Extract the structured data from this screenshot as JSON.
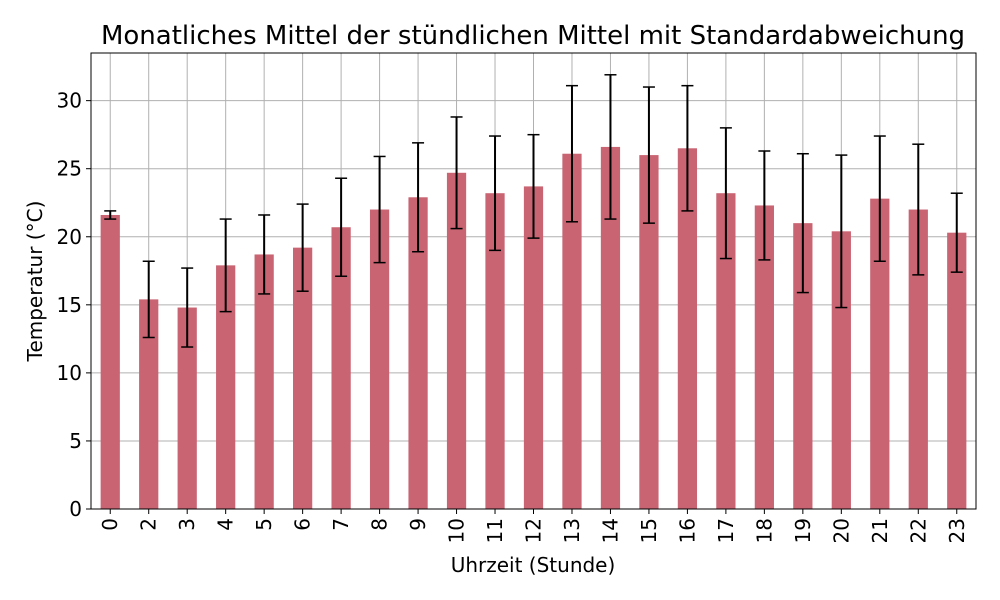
{
  "chart_data": {
    "type": "bar",
    "title": "Monatliches Mittel der stündlichen Mittel mit Standardabweichung",
    "xlabel": "Uhrzeit (Stunde)",
    "ylabel": "Temperatur (°C)",
    "categories": [
      "0",
      "2",
      "3",
      "4",
      "5",
      "6",
      "7",
      "8",
      "9",
      "10",
      "11",
      "12",
      "13",
      "14",
      "15",
      "16",
      "17",
      "18",
      "19",
      "20",
      "21",
      "22",
      "23"
    ],
    "values": [
      21.6,
      15.4,
      14.8,
      17.9,
      18.7,
      19.2,
      20.7,
      22.0,
      22.9,
      24.7,
      23.2,
      23.7,
      26.1,
      26.6,
      26.0,
      26.5,
      23.2,
      22.3,
      21.0,
      20.4,
      22.8,
      22.0,
      20.3
    ],
    "errors": [
      0.3,
      2.8,
      2.9,
      3.4,
      2.9,
      3.2,
      3.6,
      3.9,
      4.0,
      4.1,
      4.2,
      3.8,
      5.0,
      5.3,
      5.0,
      4.6,
      4.8,
      4.0,
      5.1,
      5.6,
      4.6,
      4.8,
      2.9
    ],
    "yticks": [
      0,
      5,
      10,
      15,
      20,
      25,
      30
    ],
    "ylim": [
      0,
      33.5
    ],
    "grid": true,
    "bar_color": "#c96473",
    "error_color": "#000000"
  }
}
